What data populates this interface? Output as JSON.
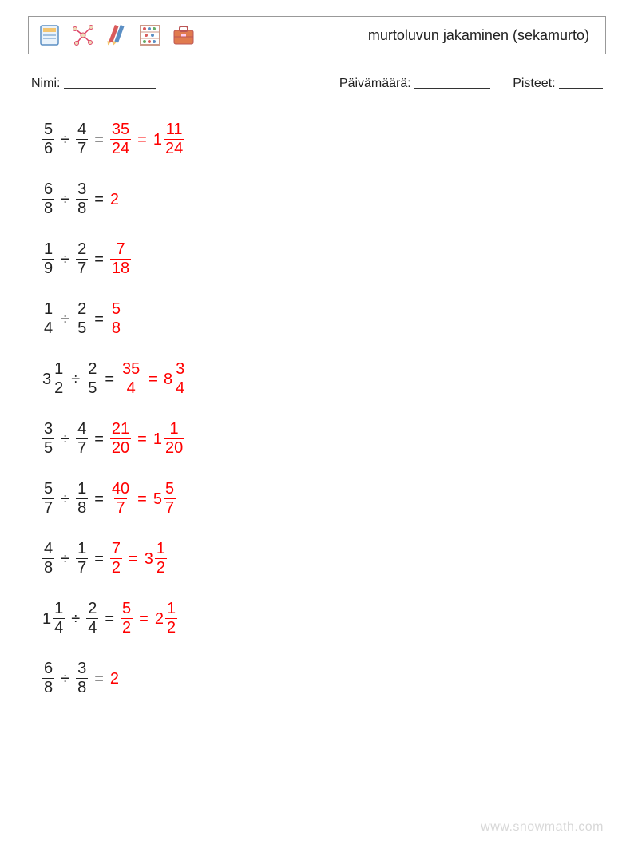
{
  "header": {
    "title": "murtoluvun jakaminen (sekamurto)",
    "icons": [
      "book-icon",
      "molecule-icon",
      "pencils-icon",
      "abacus-icon",
      "briefcase-icon"
    ]
  },
  "info": {
    "name_label": "Nimi:",
    "date_label": "Päivämäärä:",
    "score_label": "Pisteet:",
    "name_line_width": 115,
    "date_line_width": 95,
    "score_line_width": 55
  },
  "colors": {
    "text": "#222222",
    "answer": "#ff0000",
    "border": "#999999",
    "watermark": "#d8d8d8"
  },
  "typography": {
    "title_fontsize": 18,
    "info_fontsize": 16,
    "math_fontsize": 20
  },
  "problems": [
    {
      "left": {
        "type": "frac",
        "num": "5",
        "den": "6"
      },
      "op": "÷",
      "right": {
        "type": "frac",
        "num": "4",
        "den": "7"
      },
      "answers": [
        {
          "type": "frac",
          "num": "35",
          "den": "24"
        },
        {
          "type": "mixed",
          "whole": "1",
          "num": "11",
          "den": "24"
        }
      ]
    },
    {
      "left": {
        "type": "frac",
        "num": "6",
        "den": "8"
      },
      "op": "÷",
      "right": {
        "type": "frac",
        "num": "3",
        "den": "8"
      },
      "answers": [
        {
          "type": "whole",
          "value": "2"
        }
      ]
    },
    {
      "left": {
        "type": "frac",
        "num": "1",
        "den": "9"
      },
      "op": "÷",
      "right": {
        "type": "frac",
        "num": "2",
        "den": "7"
      },
      "answers": [
        {
          "type": "frac",
          "num": "7",
          "den": "18"
        }
      ]
    },
    {
      "left": {
        "type": "frac",
        "num": "1",
        "den": "4"
      },
      "op": "÷",
      "right": {
        "type": "frac",
        "num": "2",
        "den": "5"
      },
      "answers": [
        {
          "type": "frac",
          "num": "5",
          "den": "8"
        }
      ]
    },
    {
      "left": {
        "type": "mixed",
        "whole": "3",
        "num": "1",
        "den": "2"
      },
      "op": "÷",
      "right": {
        "type": "frac",
        "num": "2",
        "den": "5"
      },
      "answers": [
        {
          "type": "frac",
          "num": "35",
          "den": "4"
        },
        {
          "type": "mixed",
          "whole": "8",
          "num": "3",
          "den": "4"
        }
      ]
    },
    {
      "left": {
        "type": "frac",
        "num": "3",
        "den": "5"
      },
      "op": "÷",
      "right": {
        "type": "frac",
        "num": "4",
        "den": "7"
      },
      "answers": [
        {
          "type": "frac",
          "num": "21",
          "den": "20"
        },
        {
          "type": "mixed",
          "whole": "1",
          "num": "1",
          "den": "20"
        }
      ]
    },
    {
      "left": {
        "type": "frac",
        "num": "5",
        "den": "7"
      },
      "op": "÷",
      "right": {
        "type": "frac",
        "num": "1",
        "den": "8"
      },
      "answers": [
        {
          "type": "frac",
          "num": "40",
          "den": "7"
        },
        {
          "type": "mixed",
          "whole": "5",
          "num": "5",
          "den": "7"
        }
      ]
    },
    {
      "left": {
        "type": "frac",
        "num": "4",
        "den": "8"
      },
      "op": "÷",
      "right": {
        "type": "frac",
        "num": "1",
        "den": "7"
      },
      "answers": [
        {
          "type": "frac",
          "num": "7",
          "den": "2"
        },
        {
          "type": "mixed",
          "whole": "3",
          "num": "1",
          "den": "2"
        }
      ]
    },
    {
      "left": {
        "type": "mixed",
        "whole": "1",
        "num": "1",
        "den": "4"
      },
      "op": "÷",
      "right": {
        "type": "frac",
        "num": "2",
        "den": "4"
      },
      "answers": [
        {
          "type": "frac",
          "num": "5",
          "den": "2"
        },
        {
          "type": "mixed",
          "whole": "2",
          "num": "1",
          "den": "2"
        }
      ]
    },
    {
      "left": {
        "type": "frac",
        "num": "6",
        "den": "8"
      },
      "op": "÷",
      "right": {
        "type": "frac",
        "num": "3",
        "den": "8"
      },
      "answers": [
        {
          "type": "whole",
          "value": "2"
        }
      ]
    }
  ],
  "watermark": "www.snowmath.com"
}
